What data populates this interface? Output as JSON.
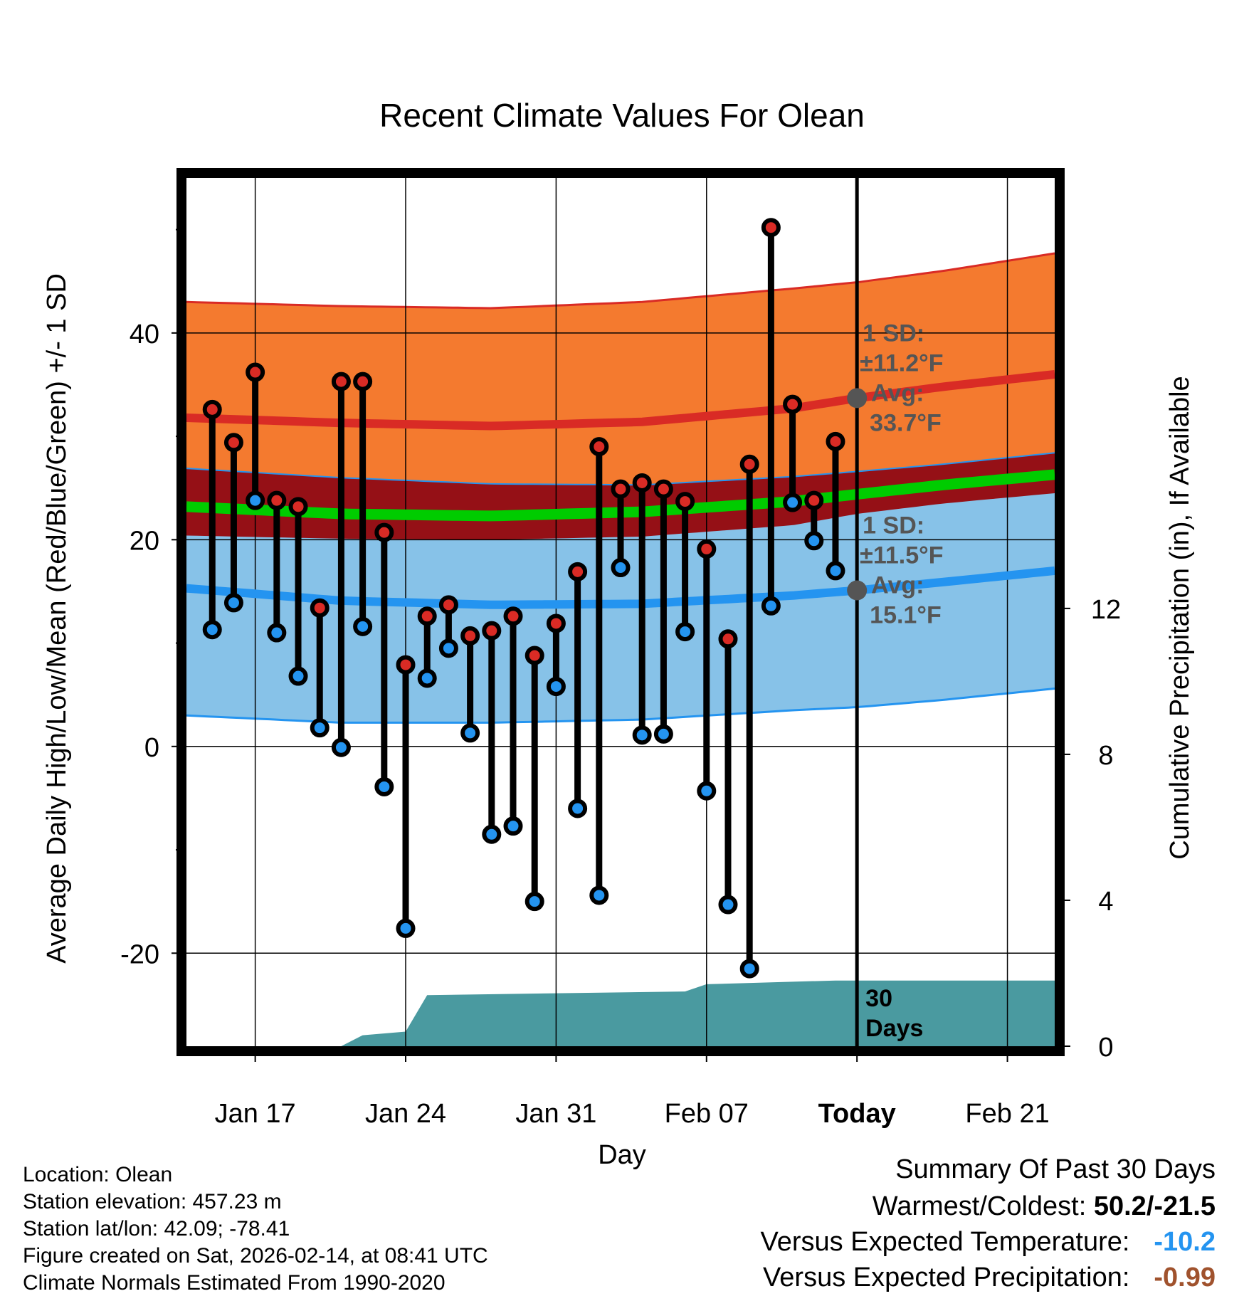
{
  "chart_data": {
    "type": "line",
    "title": "Recent Climate Values For Olean",
    "xlabel": "Day",
    "ylabel": "Average Daily High/Low/Mean (Red/Blue/Green) +/- 1 SD",
    "y2label": "Cumulative Precipitation (in), If Available",
    "ylim": [
      -29,
      55
    ],
    "y2lim": [
      0,
      23.8
    ],
    "yticks": [
      -20,
      0,
      20,
      40
    ],
    "y2ticks": [
      0,
      4,
      8,
      12
    ],
    "xlim": [
      -3.2,
      37.2
    ],
    "xticks": [
      {
        "day": 0,
        "label": "Jan 17"
      },
      {
        "day": 7,
        "label": "Jan 24"
      },
      {
        "day": 14,
        "label": "Jan 31"
      },
      {
        "day": 21,
        "label": "Feb 07"
      },
      {
        "day": 28,
        "label": "Today"
      },
      {
        "day": 35,
        "label": "Feb 21"
      }
    ],
    "today_day": 28,
    "days": [
      -2,
      -1,
      0,
      1,
      2,
      3,
      4,
      5,
      6,
      7,
      8,
      9,
      10,
      11,
      12,
      13,
      14,
      15,
      16,
      17,
      18,
      19,
      20,
      21,
      22,
      23,
      24,
      25,
      26,
      27
    ],
    "highs": [
      32.6,
      29.4,
      36.2,
      23.8,
      23.2,
      13.4,
      35.3,
      35.3,
      20.7,
      7.9,
      12.6,
      13.7,
      10.7,
      11.2,
      12.6,
      8.8,
      11.9,
      16.9,
      29.0,
      24.9,
      25.5,
      24.9,
      23.7,
      19.1,
      10.4,
      27.3,
      50.2,
      33.1,
      23.8,
      29.5
    ],
    "lows": [
      11.3,
      13.9,
      23.8,
      11.0,
      6.8,
      1.8,
      -0.1,
      11.6,
      -3.9,
      -17.6,
      6.6,
      9.5,
      1.3,
      -8.5,
      -7.7,
      -15.0,
      5.8,
      -6.0,
      -14.4,
      17.3,
      1.1,
      1.2,
      11.1,
      -4.3,
      -15.3,
      -21.5,
      13.6,
      23.6,
      19.9,
      17.0
    ],
    "normals": {
      "days": [
        -3.2,
        4,
        11,
        18,
        25,
        28,
        32,
        37.2
      ],
      "high_avg": [
        31.8,
        31.3,
        31.0,
        31.4,
        32.7,
        33.7,
        34.8,
        36.0
      ],
      "high_upper": [
        43.0,
        42.6,
        42.4,
        43.0,
        44.3,
        44.9,
        46.0,
        47.7
      ],
      "high_lower": [
        20.4,
        20.1,
        20.0,
        20.3,
        21.4,
        22.5,
        23.5,
        24.5
      ],
      "low_avg": [
        15.3,
        14.1,
        13.7,
        13.8,
        14.6,
        15.1,
        15.9,
        17.0
      ],
      "low_upper": [
        26.9,
        26.0,
        25.4,
        25.3,
        26.1,
        26.6,
        27.3,
        28.4
      ],
      "low_lower": [
        3.0,
        2.3,
        2.3,
        2.6,
        3.5,
        3.8,
        4.5,
        5.6
      ],
      "mean_avg": [
        23.2,
        22.5,
        22.3,
        22.7,
        23.7,
        24.4,
        25.3,
        26.3
      ]
    },
    "precip": {
      "days": [
        -3.2,
        4,
        5,
        7,
        8,
        20,
        21,
        27,
        37.2
      ],
      "values": [
        0,
        0,
        0.3,
        0.4,
        1.4,
        1.5,
        1.7,
        1.8,
        1.8
      ]
    },
    "high_annotation": {
      "line1": "1 SD:",
      "line2": "±11.2°F",
      "line3": "Avg:",
      "line4": "33.7°F",
      "avg": 33.7
    },
    "low_annotation": {
      "line1": "1 SD:",
      "line2": "±11.5°F",
      "line3": "Avg:",
      "line4": "15.1°F",
      "avg": 15.1
    },
    "days_label": {
      "line1": "30",
      "line2": "Days"
    },
    "colors": {
      "high_band": "#f47a2f",
      "high_line": "#d92b25",
      "low_band": "#87c2e8",
      "low_line": "#2494f0",
      "overlap": "#951016",
      "mean_line": "#00cc00",
      "precip": "#4a9aa0",
      "high_dot": "#d92b25",
      "low_dot": "#2494f0",
      "annotation": "#555555"
    }
  },
  "info": {
    "location": "Location: Olean",
    "elevation": "Station elevation: 457.23 m",
    "latlon": "Station lat/lon: 42.09; -78.41",
    "created": "Figure created on Sat, 2026-02-14, at 08:41 UTC",
    "normals": "Climate Normals Estimated From 1990-2020"
  },
  "summary": {
    "title": "Summary Of Past 30 Days",
    "warm_cold_label": "Warmest/Coldest:",
    "warm_cold_value": "50.2/-21.5",
    "temp_label": "Versus Expected Temperature:",
    "temp_value": "-10.2",
    "temp_color": "#2494f0",
    "precip_label": "Versus Expected Precipitation:",
    "precip_value": "-0.99",
    "precip_color": "#a0522d"
  }
}
